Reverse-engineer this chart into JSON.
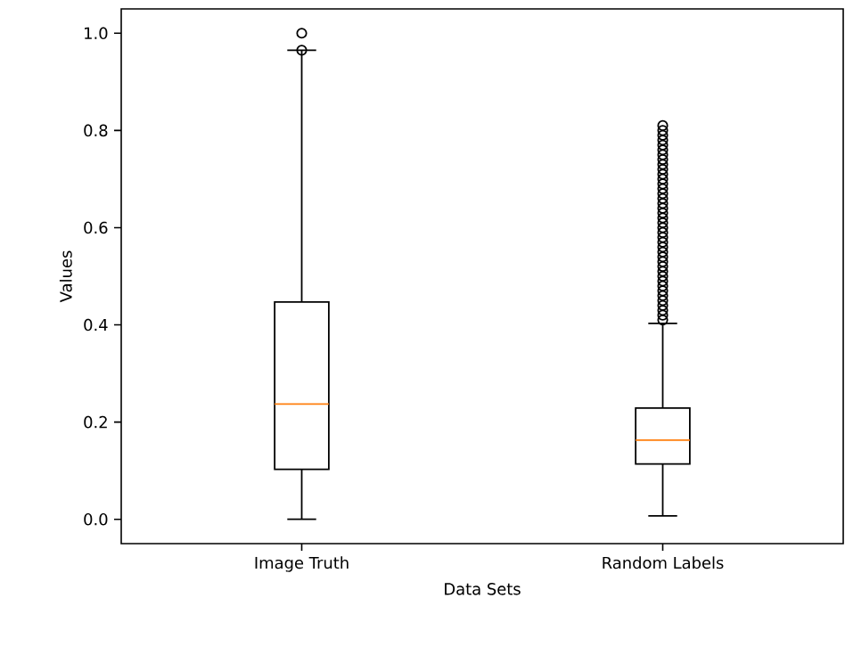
{
  "chart_data": {
    "type": "box",
    "xlabel": "Data Sets",
    "ylabel": "Values",
    "categories": [
      "Image Truth",
      "Random Labels"
    ],
    "boxes": [
      {
        "low": 0.0,
        "q1": 0.103,
        "median": 0.237,
        "q3": 0.447,
        "high": 0.965,
        "outliers": [
          0.965,
          1.0
        ]
      },
      {
        "low": 0.007,
        "q1": 0.114,
        "median": 0.163,
        "q3": 0.229,
        "high": 0.403,
        "outliers": [
          0.41,
          0.42,
          0.43,
          0.44,
          0.45,
          0.46,
          0.47,
          0.48,
          0.49,
          0.5,
          0.51,
          0.52,
          0.53,
          0.54,
          0.55,
          0.56,
          0.57,
          0.58,
          0.59,
          0.6,
          0.61,
          0.62,
          0.63,
          0.64,
          0.65,
          0.66,
          0.67,
          0.68,
          0.69,
          0.7,
          0.71,
          0.72,
          0.73,
          0.74,
          0.75,
          0.76,
          0.77,
          0.78,
          0.79,
          0.8,
          0.81
        ]
      }
    ],
    "color": "#000000",
    "marker": "circle",
    "grid": false,
    "ylim": [
      -0.05,
      1.05
    ],
    "yticks": [
      {
        "value": 0,
        "label": "0.0"
      },
      {
        "value": 0.2,
        "label": "0.2"
      },
      {
        "value": 0.4,
        "label": "0.4"
      },
      {
        "value": 0.6,
        "label": "0.6"
      },
      {
        "value": 0.8,
        "label": "0.8"
      },
      {
        "value": 1.0,
        "label": "1.0"
      }
    ]
  }
}
